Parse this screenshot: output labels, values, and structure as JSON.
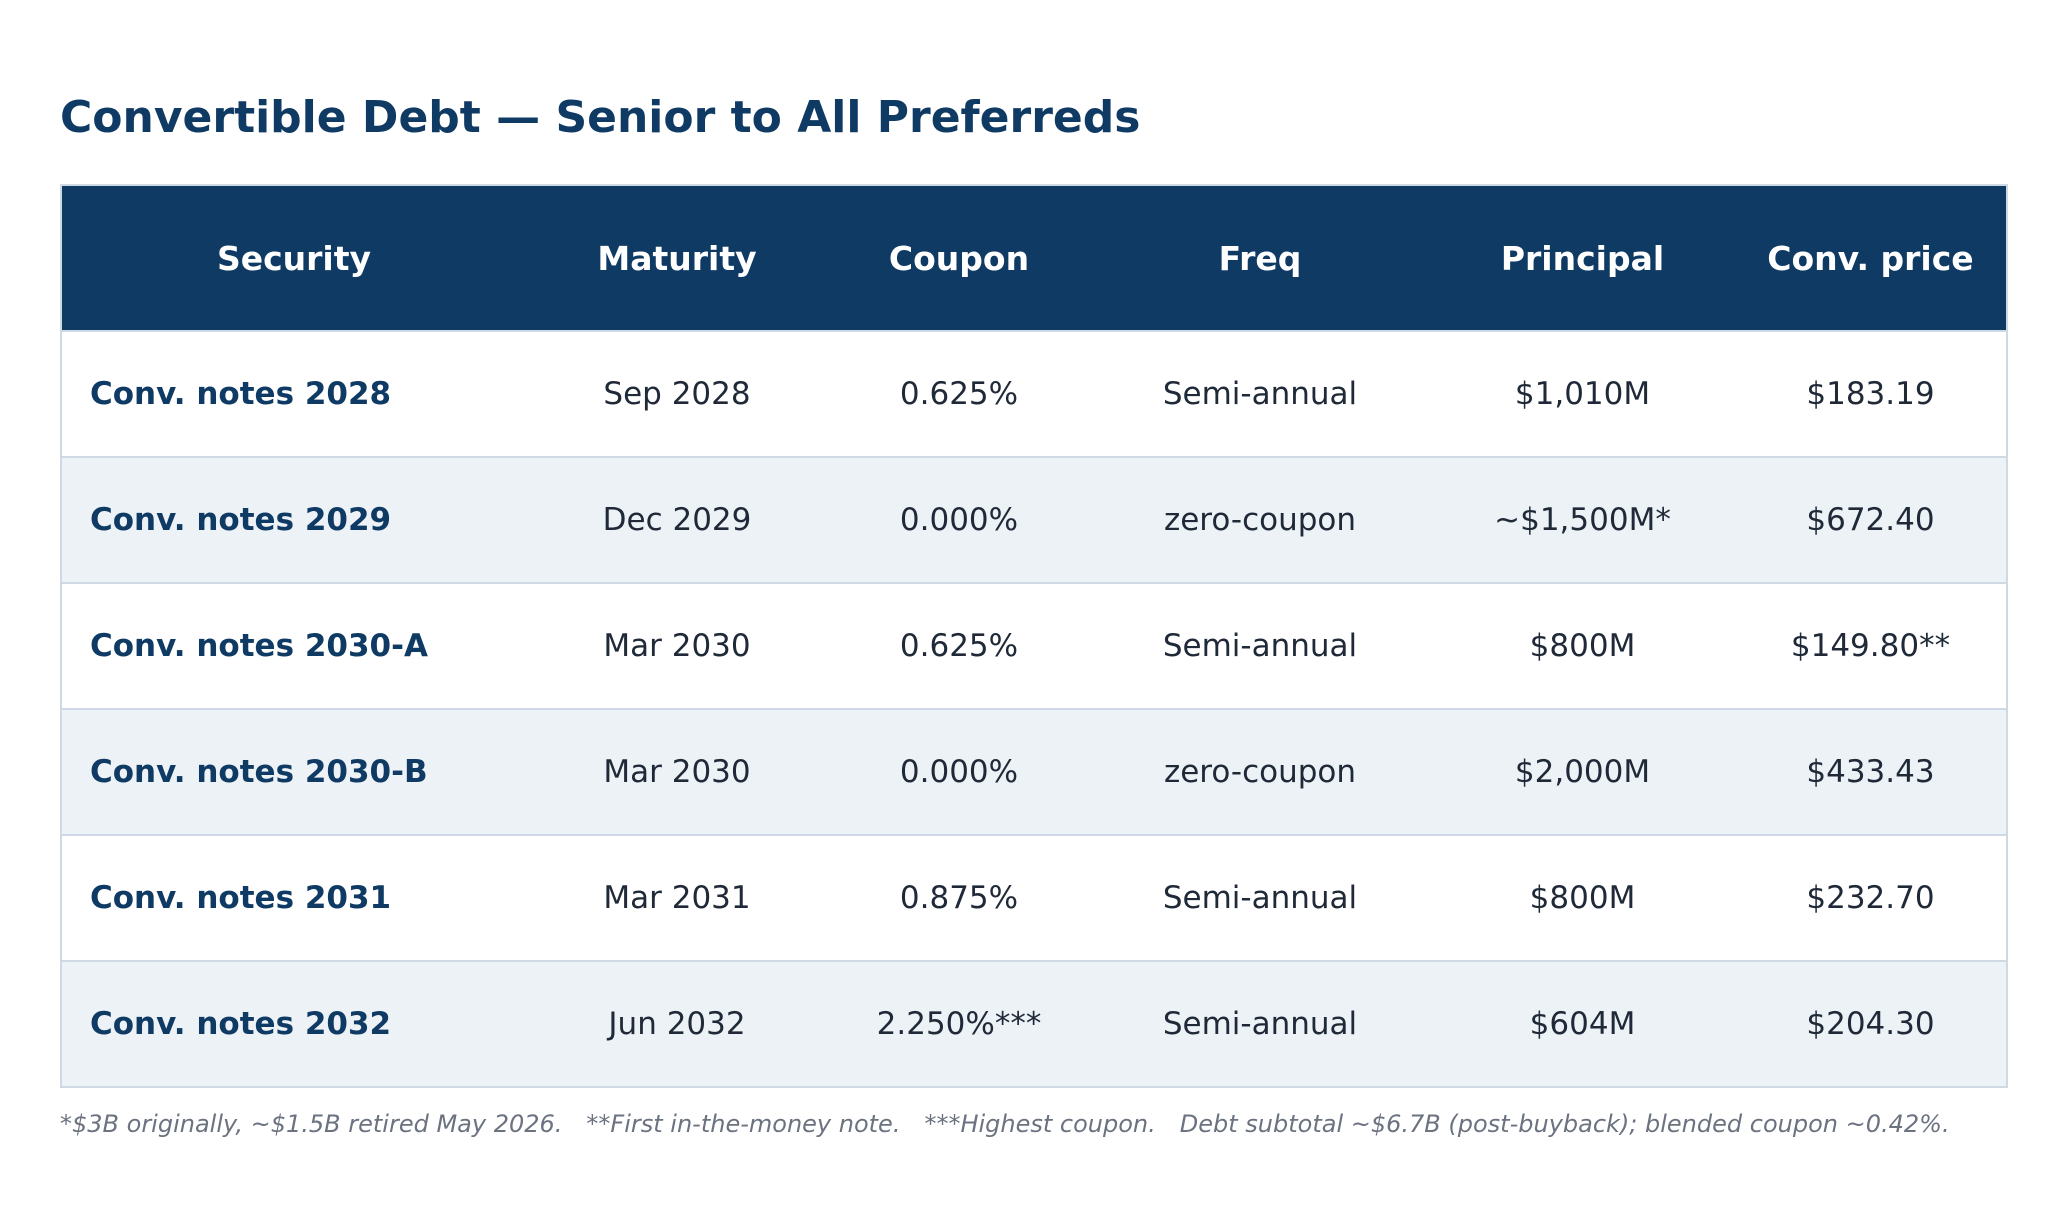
{
  "title": "Convertible Debt — Senior to All Preferreds",
  "table": {
    "headers": [
      "Security",
      "Maturity",
      "Coupon",
      "Freq",
      "Principal",
      "Conv. price"
    ],
    "rows": [
      {
        "security": "Conv. notes 2028",
        "maturity": "Sep 2028",
        "coupon": "0.625%",
        "freq": "Semi-annual",
        "principal": "$1,010M",
        "conv_price": "$183.19"
      },
      {
        "security": "Conv. notes 2029",
        "maturity": "Dec 2029",
        "coupon": "0.000%",
        "freq": "zero-coupon",
        "principal": "~$1,500M*",
        "conv_price": "$672.40"
      },
      {
        "security": "Conv. notes 2030-A",
        "maturity": "Mar 2030",
        "coupon": "0.625%",
        "freq": "Semi-annual",
        "principal": "$800M",
        "conv_price": "$149.80**"
      },
      {
        "security": "Conv. notes 2030-B",
        "maturity": "Mar 2030",
        "coupon": "0.000%",
        "freq": "zero-coupon",
        "principal": "$2,000M",
        "conv_price": "$433.43"
      },
      {
        "security": "Conv. notes 2031",
        "maturity": "Mar 2031",
        "coupon": "0.875%",
        "freq": "Semi-annual",
        "principal": "$800M",
        "conv_price": "$232.70"
      },
      {
        "security": "Conv. notes 2032",
        "maturity": "Jun 2032",
        "coupon": "2.250%***",
        "freq": "Semi-annual",
        "principal": "$604M",
        "conv_price": "$204.30"
      }
    ]
  },
  "footnotes": [
    "*$3B originally, ~$1.5B retired May 2026.",
    "**First in-the-money note.",
    "***Highest coupon.",
    "Debt subtotal ~$6.7B (post-buyback); blended coupon ~0.42%."
  ],
  "colors": {
    "header_bg": "#0f3a64",
    "title": "#0f3a64",
    "row_alt_bg": "#edf2f7",
    "border": "#cfd9e4",
    "footnote": "#6b7280"
  }
}
